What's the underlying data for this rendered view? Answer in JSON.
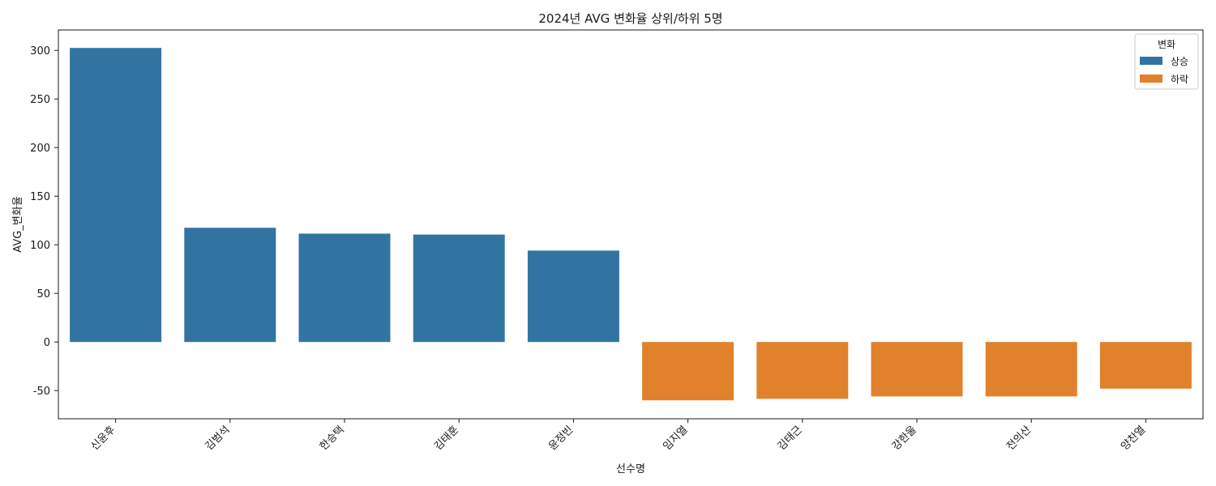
{
  "chart_data": {
    "type": "bar",
    "title": "2024년 AVG 변화율 상위/하위 5명",
    "xlabel": "선수명",
    "ylabel": "AVG_변화율",
    "categories": [
      "신윤후",
      "김범석",
      "한승택",
      "김태훈",
      "윤정빈",
      "임지열",
      "김태근",
      "강한울",
      "전의산",
      "양찬열"
    ],
    "values": [
      302.5,
      117.5,
      111.5,
      110.5,
      94.0,
      -60.0,
      -58.5,
      -56.0,
      -56.0,
      -48.0
    ],
    "groups": [
      "상승",
      "상승",
      "상승",
      "상승",
      "상승",
      "하락",
      "하락",
      "하락",
      "하락",
      "하락"
    ],
    "ylim": [
      -79,
      321
    ],
    "yticks": [
      -50,
      0,
      50,
      100,
      150,
      200,
      250,
      300
    ],
    "grid": false,
    "legend": {
      "title": "변화",
      "placement": "top-right",
      "entries": [
        {
          "label": "상승",
          "color": "#3274a1"
        },
        {
          "label": "하락",
          "color": "#e1812c"
        }
      ]
    }
  }
}
